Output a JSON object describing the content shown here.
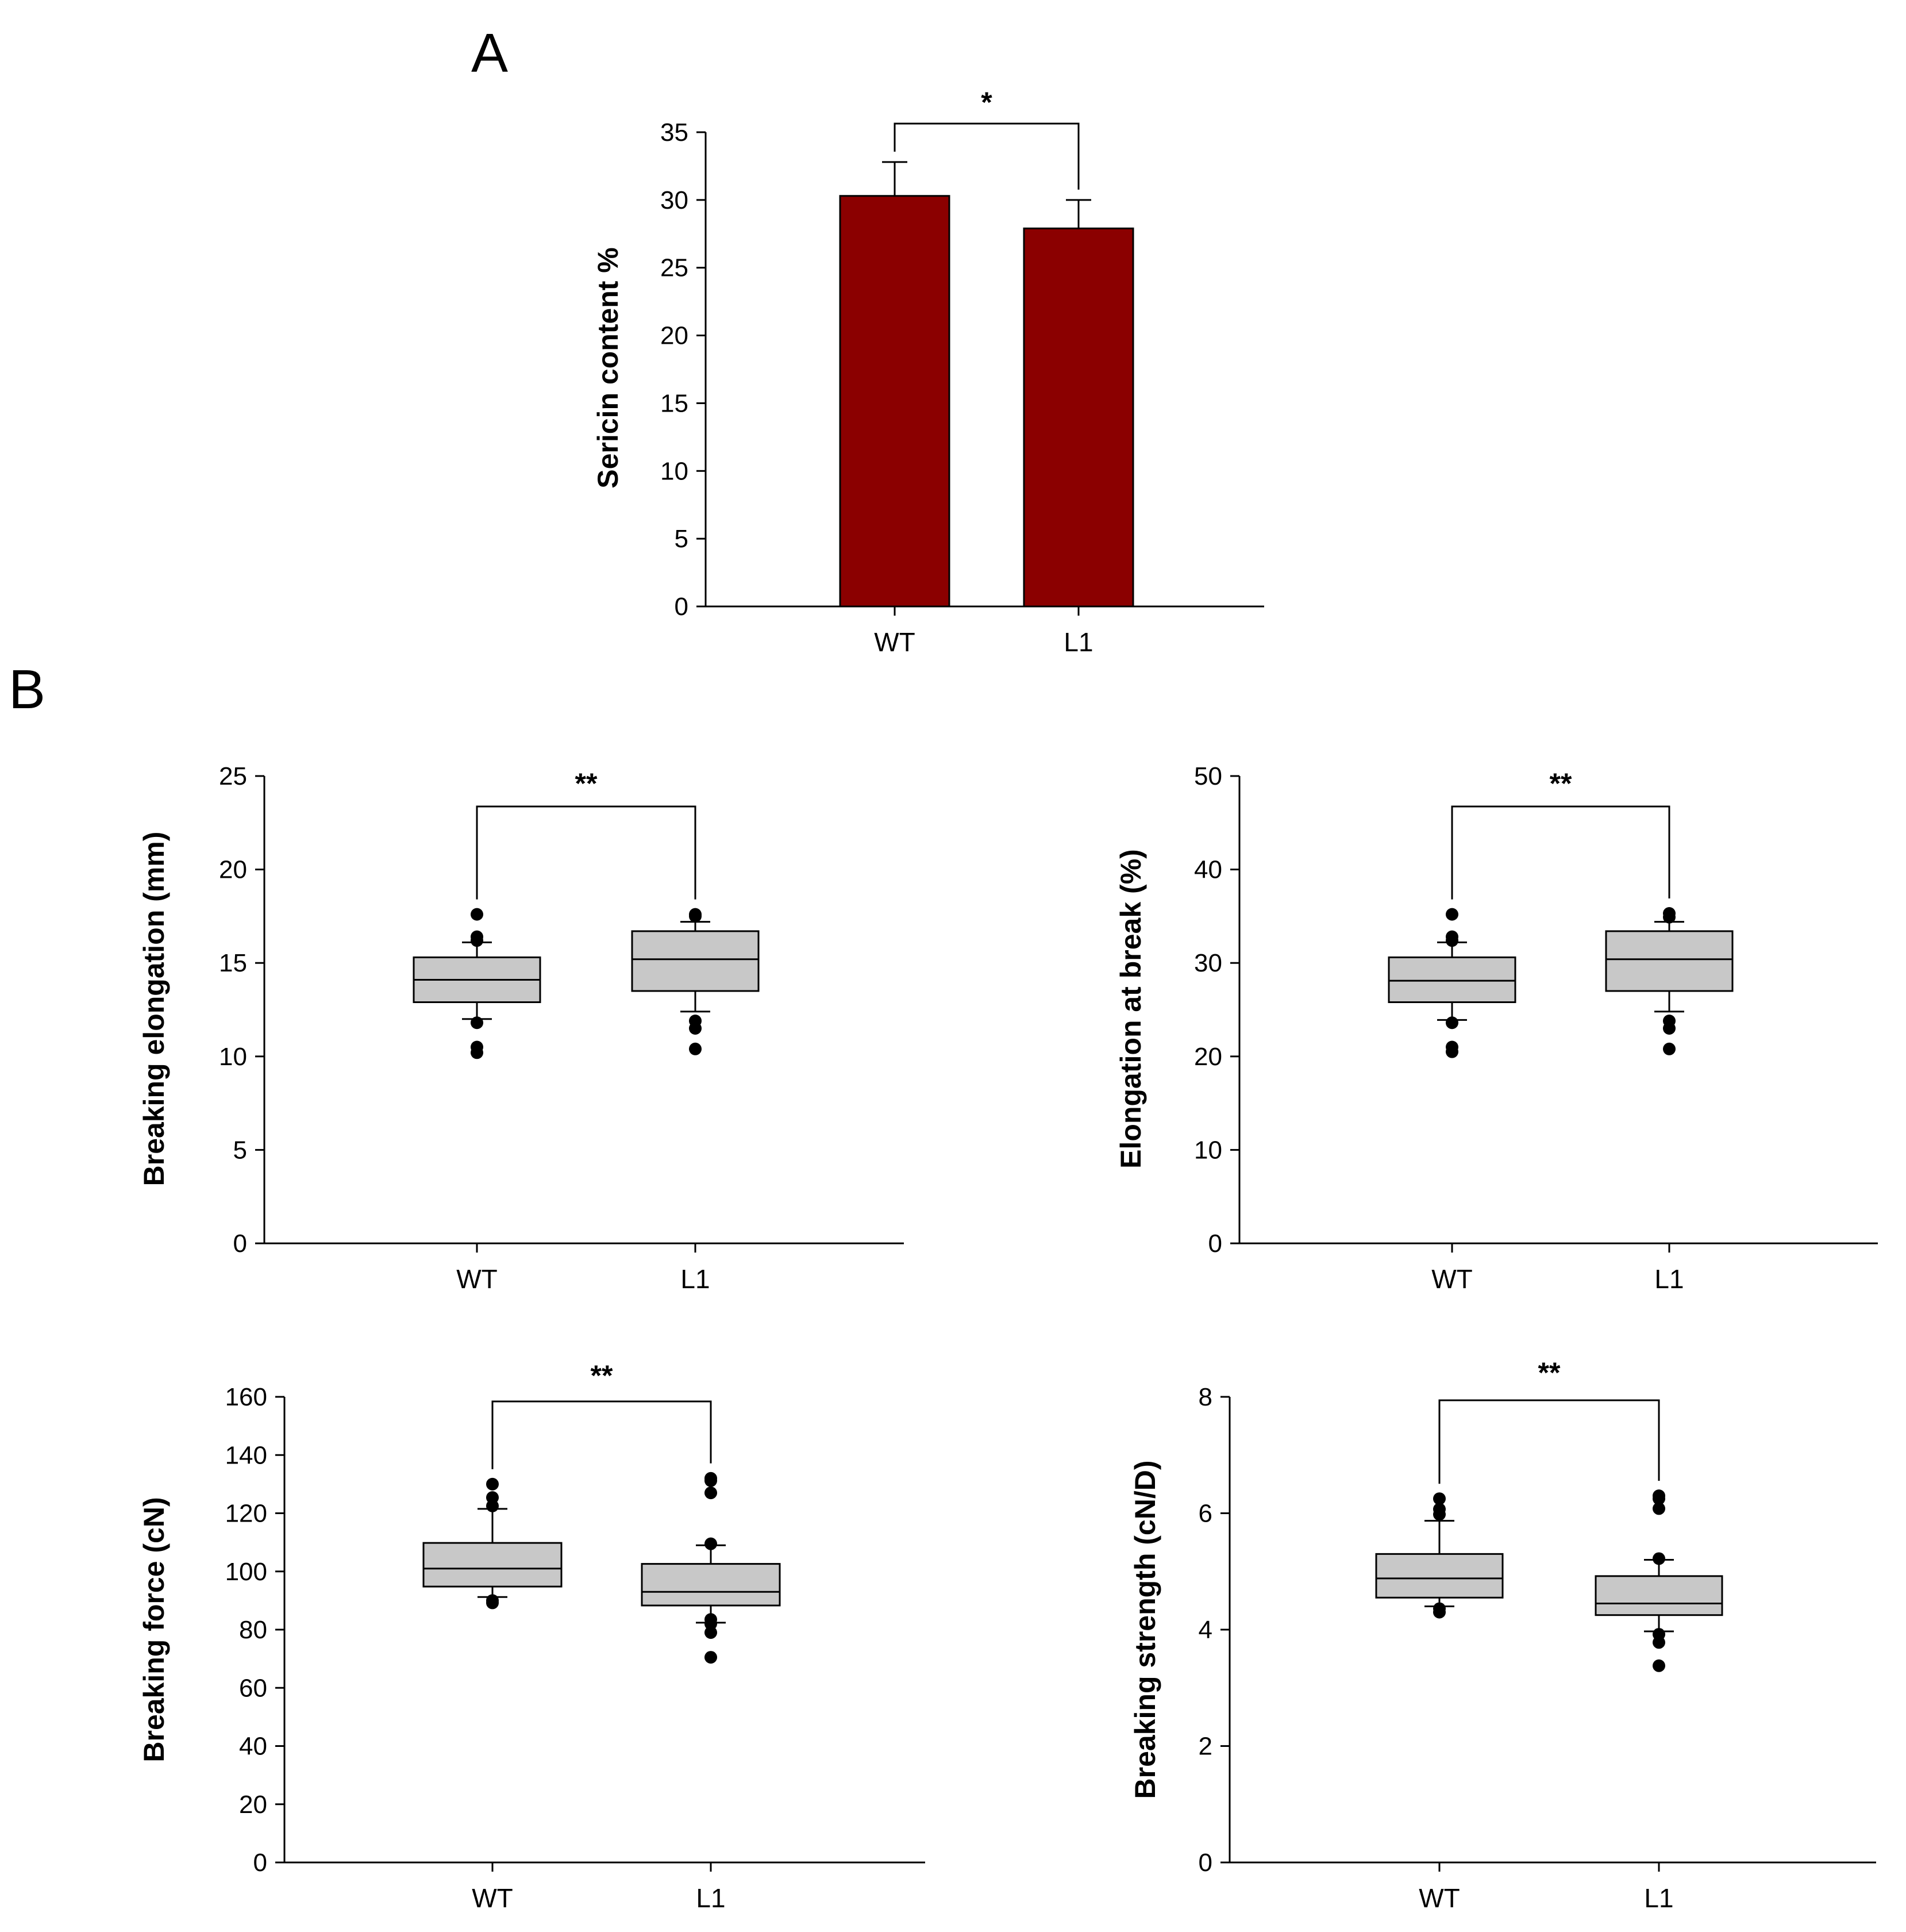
{
  "panel_labels": {
    "a": "A",
    "b": "B"
  },
  "colors": {
    "bar": "#8b0000",
    "box": "#c8c8c8"
  },
  "chart_data": [
    {
      "id": "A",
      "type": "bar",
      "categories": [
        "WT",
        "L1"
      ],
      "values": [
        30.3,
        27.9
      ],
      "errors": [
        2.5,
        2.1
      ],
      "ylabel": "Sericin content %",
      "ylim": [
        0,
        35
      ],
      "yticks": [
        0,
        5,
        10,
        15,
        20,
        25,
        30,
        35
      ],
      "significance": "*"
    },
    {
      "id": "B1",
      "type": "box",
      "categories": [
        "WT",
        "L1"
      ],
      "ylabel": "Breaking elongation (mm)",
      "ylim": [
        0,
        25
      ],
      "yticks": [
        0,
        5,
        10,
        15,
        20,
        25
      ],
      "significance": "**",
      "boxes": [
        {
          "q1": 12.9,
          "median": 14.1,
          "q3": 15.3,
          "whisker_low": 12.0,
          "whisker_high": 16.1,
          "outliers": [
            17.6,
            16.4,
            16.2,
            11.8,
            10.5,
            10.2
          ]
        },
        {
          "q1": 13.5,
          "median": 15.2,
          "q3": 16.7,
          "whisker_low": 12.4,
          "whisker_high": 17.2,
          "outliers": [
            17.6,
            17.5,
            11.9,
            11.5,
            10.4
          ]
        }
      ]
    },
    {
      "id": "B2",
      "type": "box",
      "categories": [
        "WT",
        "L1"
      ],
      "ylabel": "Elongation at break (%)",
      "ylim": [
        0,
        50
      ],
      "yticks": [
        0,
        10,
        20,
        30,
        40,
        50
      ],
      "significance": "**",
      "boxes": [
        {
          "q1": 25.8,
          "median": 28.1,
          "q3": 30.6,
          "whisker_low": 23.9,
          "whisker_high": 32.2,
          "outliers": [
            35.2,
            32.8,
            32.4,
            23.6,
            21.0,
            20.5
          ]
        },
        {
          "q1": 27.0,
          "median": 30.4,
          "q3": 33.4,
          "whisker_low": 24.8,
          "whisker_high": 34.4,
          "outliers": [
            35.3,
            34.9,
            23.8,
            23.0,
            20.8
          ]
        }
      ]
    },
    {
      "id": "B3",
      "type": "box",
      "categories": [
        "WT",
        "L1"
      ],
      "ylabel": "Breaking force (cN)",
      "ylim": [
        0,
        160
      ],
      "yticks": [
        0,
        20,
        40,
        60,
        80,
        100,
        120,
        140,
        160
      ],
      "significance": "**",
      "boxes": [
        {
          "q1": 94.8,
          "median": 101.0,
          "q3": 109.8,
          "whisker_low": 91.2,
          "whisker_high": 121.5,
          "outliers": [
            130.0,
            125.4,
            122.5,
            90.0,
            89.2
          ]
        },
        {
          "q1": 88.3,
          "median": 93.0,
          "q3": 102.6,
          "whisker_low": 82.4,
          "whisker_high": 109.0,
          "outliers": [
            132.0,
            131.2,
            127.0,
            109.5,
            83.5,
            82.0,
            79.0,
            70.5
          ]
        }
      ]
    },
    {
      "id": "B4",
      "type": "box",
      "categories": [
        "WT",
        "L1"
      ],
      "ylabel": "Breaking strength (cN/D)",
      "ylim": [
        0,
        8
      ],
      "yticks": [
        0,
        2,
        4,
        6,
        8
      ],
      "significance": "**",
      "boxes": [
        {
          "q1": 4.55,
          "median": 4.88,
          "q3": 5.3,
          "whisker_low": 4.4,
          "whisker_high": 5.87,
          "outliers": [
            6.25,
            6.07,
            5.98,
            4.36,
            4.3
          ]
        },
        {
          "q1": 4.25,
          "median": 4.45,
          "q3": 4.92,
          "whisker_low": 3.97,
          "whisker_high": 5.2,
          "outliers": [
            6.3,
            6.25,
            6.08,
            5.22,
            3.92,
            3.78,
            3.38
          ]
        }
      ]
    }
  ]
}
